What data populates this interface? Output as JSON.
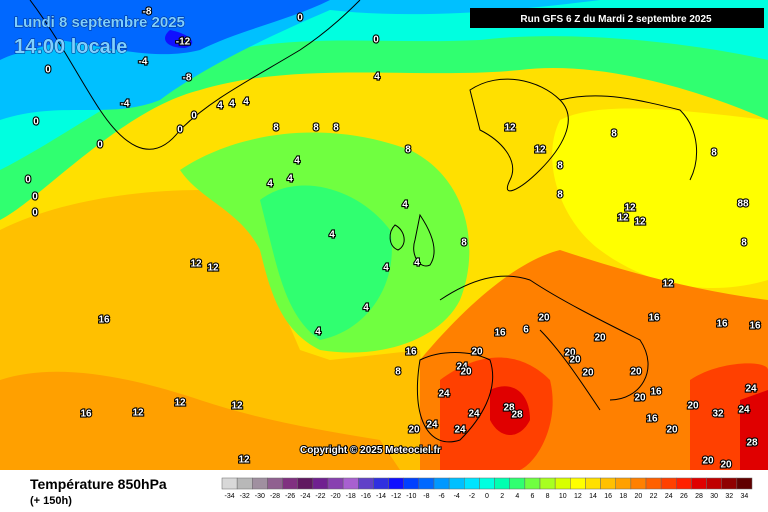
{
  "header": {
    "date": "Lundi 8 septembre 2025",
    "time": "14:00 locale",
    "run": "Run GFS 6 Z du Mardi 2 septembre 2025",
    "copyright": "Copyright © 2025 Meteociel.fr"
  },
  "footer": {
    "title": "Température 850hPa",
    "lead": "(+ 150h)"
  },
  "scale": {
    "ticks": [
      -34,
      -32,
      -30,
      -28,
      -26,
      -24,
      -22,
      -20,
      -18,
      -16,
      -14,
      -12,
      -10,
      -8,
      -6,
      -4,
      -2,
      0,
      2,
      4,
      6,
      8,
      10,
      12,
      14,
      16,
      18,
      20,
      22,
      24,
      26,
      28,
      30,
      32,
      34
    ],
    "colors": [
      "#d8d8d8",
      "#b8b8b8",
      "#a090a0",
      "#906090",
      "#803080",
      "#601860",
      "#702090",
      "#8840b0",
      "#a860d0",
      "#6040c8",
      "#3030e0",
      "#1010ff",
      "#0040ff",
      "#0068ff",
      "#0098ff",
      "#00c0ff",
      "#00e4ff",
      "#00ffe0",
      "#00ffb0",
      "#30ff70",
      "#70ff40",
      "#a8ff20",
      "#d8ff00",
      "#ffff00",
      "#ffe000",
      "#ffc000",
      "#ffa000",
      "#ff8000",
      "#ff6000",
      "#ff4000",
      "#ff2000",
      "#e00000",
      "#c00000",
      "#900000",
      "#600000"
    ]
  },
  "map_labels": [
    -8,
    0,
    -12,
    -4,
    -8,
    0,
    -4,
    0,
    0,
    4,
    4,
    4,
    0,
    0,
    0,
    0,
    0,
    0,
    4,
    8,
    8,
    8,
    12,
    8,
    12,
    4,
    4,
    4,
    8,
    8,
    8,
    8,
    12,
    12,
    12,
    88,
    4,
    4,
    4,
    4,
    4,
    4,
    8,
    8,
    12,
    12,
    16,
    12,
    16,
    16,
    16,
    20,
    16,
    6,
    20,
    16,
    20,
    20,
    20,
    24,
    20,
    20,
    8,
    20,
    16,
    12,
    12,
    12,
    12,
    24,
    24,
    20,
    16,
    24,
    28,
    28,
    24,
    24,
    20,
    20,
    32,
    24,
    16,
    20,
    28,
    20,
    20
  ]
}
